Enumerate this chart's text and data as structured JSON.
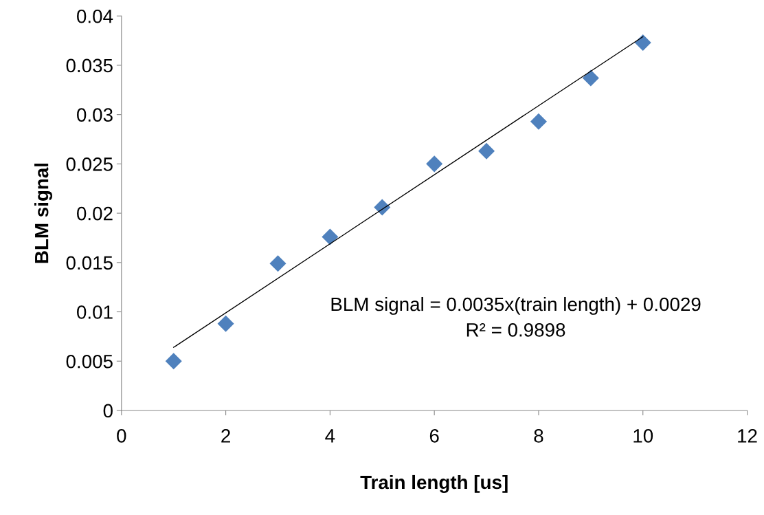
{
  "chart_data": {
    "type": "scatter",
    "xlabel": "Train length [us]",
    "ylabel": "BLM signal",
    "x": [
      1,
      2,
      3,
      4,
      5,
      6,
      7,
      8,
      9,
      10
    ],
    "series": [
      {
        "color": "#4f81bd",
        "marker": "diamond",
        "values": [
          0.005,
          0.0088,
          0.0149,
          0.0176,
          0.0206,
          0.025,
          0.0263,
          0.0293,
          0.0337,
          0.0373
        ]
      },
      {
        "type": "line",
        "color": "#000000",
        "marker": "none",
        "x": [
          1,
          10
        ],
        "values": [
          0.0064,
          0.0379
        ]
      }
    ],
    "xlim": [
      0,
      12
    ],
    "xticks": [
      0,
      2,
      4,
      6,
      8,
      10,
      12
    ],
    "ylim": [
      0,
      0.04
    ],
    "yticks": [
      {
        "value": 0,
        "label": "0"
      },
      0.005,
      0.01,
      0.015,
      0.02,
      0.025,
      0.03,
      0.035,
      0.04
    ],
    "grid": false,
    "annotations": [
      "BLM signal = 0.0035x(train length) + 0.0029",
      "R² = 0.9898"
    ]
  }
}
